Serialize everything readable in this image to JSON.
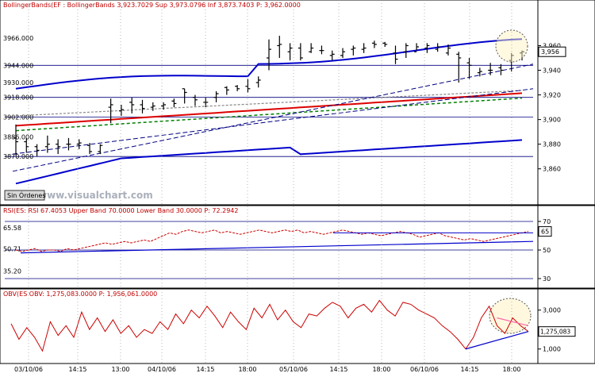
{
  "chart_data": [
    {
      "panel": "price",
      "type": "bar",
      "title": "BollingerBands(EF : BollingerBands 3,923.7029  Sup 3,973.0796  Inf 3,873.7403  P: 3,962.0000",
      "y_ticks": [
        "3,960",
        "3,940",
        "3,920",
        "3,900",
        "3,880",
        "3,860"
      ],
      "y_last_label": "3,956",
      "hline_labels": [
        "3966.000",
        "3944.000",
        "3930.000",
        "3918.000",
        "3902.000",
        "3886.000",
        "3870.000"
      ],
      "hline_values": [
        3966,
        3944,
        3930,
        3918,
        3902,
        3886,
        3870
      ],
      "watermark": "www.visualchart.com",
      "button_label": "Sin Órdenes",
      "ylim": [
        3845,
        3988
      ],
      "ohlc": [
        [
          3885,
          3896,
          3871,
          3882
        ],
        [
          3882,
          3885,
          3873,
          3878
        ],
        [
          3878,
          3880,
          3870,
          3875
        ],
        [
          3878,
          3887,
          3873,
          3880
        ],
        [
          3880,
          3884,
          3872,
          3878
        ],
        [
          3880,
          3885,
          3875,
          3880
        ],
        [
          3880,
          3884,
          3876,
          3881
        ],
        [
          3879,
          3881,
          3872,
          3874
        ],
        [
          3874,
          3880,
          3872,
          3879
        ],
        [
          3910,
          3917,
          3897,
          3912
        ],
        [
          3907,
          3912,
          3903,
          3908
        ],
        [
          3914,
          3918,
          3905,
          3912
        ],
        [
          3912,
          3916,
          3905,
          3909
        ],
        [
          3910,
          3914,
          3907,
          3911
        ],
        [
          3911,
          3914,
          3908,
          3912
        ],
        [
          3915,
          3917,
          3910,
          3913
        ],
        [
          3925,
          3925,
          3913,
          3922
        ],
        [
          3918,
          3920,
          3911,
          3916
        ],
        [
          3914,
          3918,
          3910,
          3914
        ],
        [
          3918,
          3923,
          3914,
          3921
        ],
        [
          3926,
          3927,
          3920,
          3924
        ],
        [
          3927,
          3928,
          3923,
          3925
        ],
        [
          3927,
          3933,
          3922,
          3925
        ],
        [
          3930,
          3935,
          3926,
          3932
        ],
        [
          3950,
          3965,
          3940,
          3957
        ],
        [
          3960,
          3968,
          3950,
          3961
        ],
        [
          3955,
          3962,
          3948,
          3958
        ],
        [
          3958,
          3962,
          3948,
          3950
        ],
        [
          3955,
          3962,
          3954,
          3958
        ],
        [
          3956,
          3960,
          3953,
          3956
        ],
        [
          3952,
          3956,
          3948,
          3953
        ],
        [
          3952,
          3958,
          3950,
          3955
        ],
        [
          3957,
          3960,
          3952,
          3958
        ],
        [
          3957,
          3962,
          3954,
          3958
        ],
        [
          3962,
          3964,
          3958,
          3961
        ],
        [
          3962,
          3963,
          3959,
          3961
        ],
        [
          3954,
          3960,
          3945,
          3949
        ],
        [
          3955,
          3962,
          3950,
          3960
        ],
        [
          3955,
          3962,
          3956,
          3959
        ],
        [
          3958,
          3962,
          3954,
          3960
        ],
        [
          3957,
          3962,
          3955,
          3959
        ],
        [
          3954,
          3961,
          3952,
          3958
        ],
        [
          3953,
          3955,
          3930,
          3950
        ],
        [
          3946,
          3950,
          3933,
          3944
        ],
        [
          3938,
          3942,
          3935,
          3939
        ],
        [
          3940,
          3946,
          3936,
          3940
        ],
        [
          3942,
          3945,
          3936,
          3940
        ],
        [
          3948,
          3954,
          3939,
          3952
        ],
        [
          3954,
          3956,
          3948,
          3955
        ]
      ],
      "annotations": [
        "ellipse marking last bars"
      ]
    },
    {
      "panel": "rsi",
      "type": "line",
      "title": "RSI(ES: RSI 67.4053 Upper Band 70.0000 Lower Band 30.0000  P: 72.2942",
      "y_ticks": [
        "70",
        "50",
        "30"
      ],
      "y_last_label": "65",
      "left_labels": [
        "65.58",
        "50.71",
        "35.20"
      ],
      "ylim": [
        25,
        75
      ],
      "values": [
        50,
        49,
        50,
        51,
        49,
        50,
        50,
        49,
        51,
        50,
        51,
        52,
        53,
        54,
        55,
        54,
        55,
        56,
        55,
        56,
        57,
        56,
        58,
        60,
        62,
        61,
        63,
        64,
        63,
        62,
        63,
        64,
        62,
        63,
        62,
        61,
        62,
        63,
        64,
        63,
        62,
        63,
        64,
        63,
        64,
        62,
        63,
        62,
        61,
        62,
        63,
        64,
        63,
        62,
        61,
        62,
        61,
        60,
        61,
        62,
        63,
        62,
        61,
        59,
        60,
        61,
        62,
        60,
        59,
        58,
        57,
        58,
        57,
        56,
        57,
        58,
        59,
        60,
        61,
        62,
        63
      ]
    },
    {
      "panel": "obv",
      "type": "line",
      "title": "OBV(ES OBV: 1,275,083.0000  P: 1,956,061.0000",
      "y_ticks": [
        "3,000",
        "2,000",
        "1,000"
      ],
      "y_last_label": "1,275,083",
      "ylim": [
        500,
        3600
      ],
      "values": [
        2300,
        1500,
        2100,
        1600,
        900,
        2400,
        1700,
        2200,
        1600,
        2900,
        2000,
        2600,
        1900,
        2500,
        1800,
        2200,
        1600,
        2000,
        1800,
        2400,
        2000,
        2800,
        2300,
        3000,
        2600,
        3200,
        2700,
        2100,
        2900,
        2400,
        2000,
        3100,
        2600,
        3300,
        2500,
        3000,
        2400,
        2100,
        2800,
        2700,
        3100,
        3400,
        3200,
        2600,
        3100,
        3300,
        2900,
        3500,
        3000,
        2700,
        3400,
        3300,
        3000,
        2800,
        2600,
        2200,
        1900,
        1500,
        1000,
        1600,
        2600,
        3200,
        2200,
        1800,
        2600,
        2200,
        1900
      ]
    }
  ],
  "x_labels": [
    "03/10/06",
    "14:15",
    "13:00",
    "04/10/06",
    "14:15",
    "18:00",
    "05/10/06",
    "14:15",
    "18:00",
    "06/10/06",
    "14:15",
    "18:00"
  ],
  "colors": {
    "bollinger": "#0000cc",
    "lines": "#000080",
    "mid_red": "#dd0000",
    "green_dash": "#008000",
    "rsi_red": "#cc0000",
    "ellipse_fill": "#fff3c4"
  }
}
